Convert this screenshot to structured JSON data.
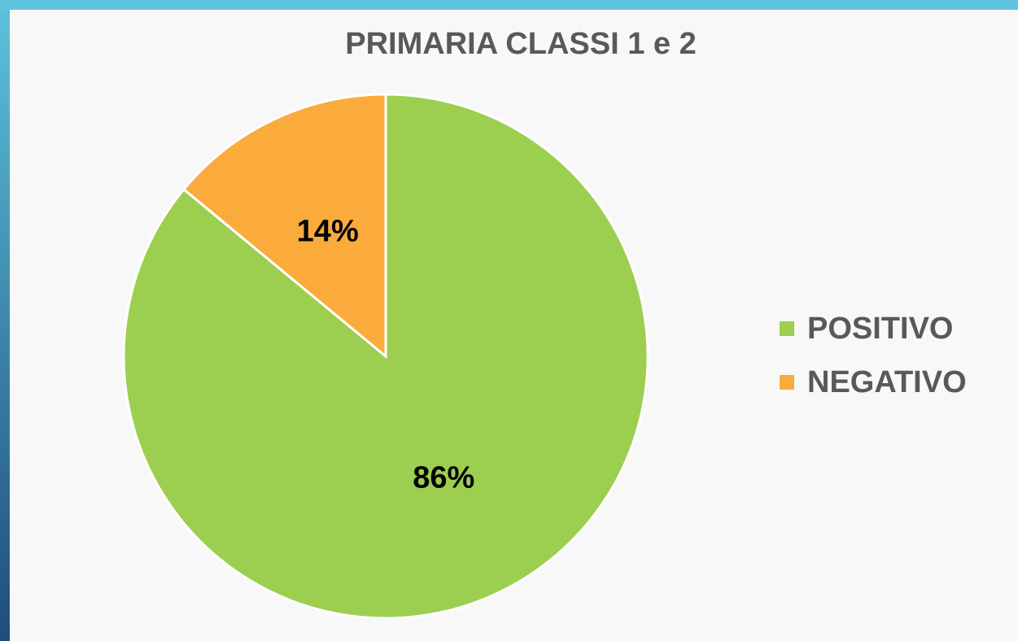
{
  "chart_data": {
    "type": "pie",
    "title": "PRIMARIA CLASSI 1 e 2",
    "categories": [
      "POSITIVO",
      "NEGATIVO"
    ],
    "values": [
      86,
      14
    ],
    "value_labels": [
      "86%",
      "14%"
    ],
    "colors": [
      "#9ccf4f",
      "#fbab3c"
    ],
    "legend": "right"
  }
}
